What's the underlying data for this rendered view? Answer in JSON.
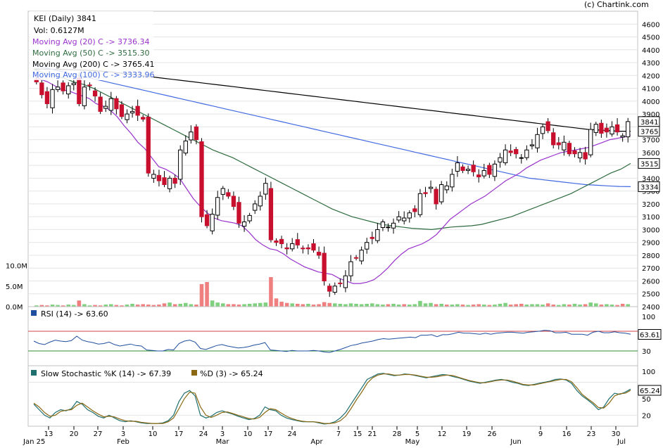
{
  "watermark": "(c) Chartink.com",
  "title": "KEI (Daily) 3841",
  "volume_label": "Vol: 0.6127M",
  "legend": [
    {
      "text": "Moving Avg (20) C -> 3736.34",
      "color": "#9932cc"
    },
    {
      "text": "Moving Avg (50) C -> 3515.30",
      "color": "#2e6b3f"
    },
    {
      "text": "Moving Avg (200) C -> 3765.41",
      "color": "#000000"
    },
    {
      "text": "Moving Avg (100) C -> 3333.96",
      "color": "#4169e1"
    }
  ],
  "rsi_label": "RSI (14) -> 63.60",
  "stoch_k_label": "Slow Stochastic %K (14) -> 67.39",
  "stoch_d_label": "%D (3) -> 65.24",
  "colors": {
    "up": "#ffffff",
    "down": "#c8102e",
    "vol_up": "#7fd17f",
    "vol_down": "#f08080",
    "rsi": "#1f4e9e",
    "stoch_k": "#1f6f6f",
    "stoch_d": "#8b6914"
  },
  "chart_data": [
    {
      "type": "candlestick",
      "title": "KEI (Daily) 3841",
      "ylim": [
        2400,
        4700
      ],
      "yticks": [
        2400,
        2500,
        2600,
        2700,
        2800,
        2900,
        3000,
        3100,
        3200,
        3300,
        3400,
        3500,
        3600,
        3700,
        3800,
        3900,
        4000,
        4100,
        4200,
        4300,
        4400,
        4500,
        4600
      ],
      "xticks": [
        "Jan 25",
        "13",
        "20",
        "27",
        "3",
        "Feb",
        "10",
        "17",
        "24",
        "3",
        "Mar",
        "10",
        "17",
        "24",
        "Apr",
        "7",
        "15",
        "21",
        "28",
        "5",
        "May",
        "12",
        "19",
        "26",
        "Jun",
        "9",
        "16",
        "23",
        "30",
        "Jul"
      ],
      "closes": [
        4150,
        4050,
        3980,
        4090,
        4110,
        4080,
        4120,
        4140,
        3980,
        4110,
        4120,
        4040,
        3920,
        3960,
        4020,
        3940,
        3880,
        3900,
        3920,
        3890,
        3860,
        3440,
        3430,
        3380,
        3350,
        3400,
        3360,
        3620,
        3690,
        3760,
        3700,
        3100,
        3030,
        3120,
        3250,
        3320,
        3260,
        3180,
        3050,
        3060,
        3110,
        3200,
        3260,
        3360,
        2920,
        2900,
        2890,
        2850,
        2890,
        2880,
        2850,
        2850,
        2840,
        2800,
        2600,
        2520,
        2560,
        2580,
        2640,
        2750,
        2780,
        2840,
        2900,
        2930,
        3000,
        3060,
        3020,
        3050,
        3100,
        3090,
        3130,
        3140,
        3280,
        3280,
        3330,
        3200,
        3350,
        3340,
        3430,
        3520,
        3460,
        3470,
        3450,
        3410,
        3460,
        3430,
        3510,
        3560,
        3620,
        3600,
        3590,
        3560,
        3620,
        3660,
        3740,
        3800,
        3770,
        3660,
        3660,
        3680,
        3590,
        3590,
        3600,
        3550,
        3780,
        3820,
        3750,
        3760,
        3800,
        3760,
        3730,
        3841
      ],
      "ma20": [
        4200,
        4170,
        4150,
        4120,
        4090,
        4080,
        4060,
        4040,
        4020,
        3980,
        3960,
        3930,
        3880,
        3810,
        3750,
        3680,
        3630,
        3560,
        3490,
        3470,
        3440,
        3400,
        3320,
        3240,
        3180,
        3130,
        3090,
        3070,
        3060,
        3050,
        3030,
        2980,
        2920,
        2880,
        2850,
        2840,
        2810,
        2770,
        2740,
        2710,
        2690,
        2670,
        2660,
        2650,
        2620,
        2600,
        2580,
        2580,
        2590,
        2610,
        2650,
        2700,
        2760,
        2810,
        2850,
        2870,
        2890,
        2920,
        2960,
        3020,
        3080,
        3120,
        3160,
        3200,
        3230,
        3260,
        3300,
        3340,
        3380,
        3410,
        3440,
        3480,
        3510,
        3540,
        3560,
        3580,
        3600,
        3610,
        3620,
        3630,
        3640,
        3660,
        3680,
        3700,
        3710,
        3720,
        3736
      ],
      "ma50": [
        4250,
        4220,
        4200,
        4180,
        4150,
        4130,
        4100,
        4060,
        4020,
        3980,
        3940,
        3900,
        3860,
        3820,
        3780,
        3740,
        3700,
        3660,
        3620,
        3590,
        3560,
        3520,
        3480,
        3440,
        3400,
        3360,
        3320,
        3280,
        3240,
        3200,
        3160,
        3130,
        3100,
        3080,
        3060,
        3040,
        3030,
        3020,
        3010,
        3005,
        3000,
        3010,
        3020,
        3025,
        3030,
        3040,
        3060,
        3080,
        3100,
        3130,
        3160,
        3190,
        3220,
        3250,
        3280,
        3320,
        3360,
        3400,
        3440,
        3470,
        3515
      ],
      "ma100": [
        4280,
        4260,
        4240,
        4220,
        4200,
        4180,
        4160,
        4140,
        4120,
        4100,
        4080,
        4060,
        4040,
        4020,
        4000,
        3980,
        3960,
        3940,
        3920,
        3900,
        3880,
        3860,
        3840,
        3820,
        3800,
        3780,
        3760,
        3740,
        3720,
        3700,
        3680,
        3660,
        3640,
        3620,
        3600,
        3580,
        3560,
        3540,
        3520,
        3500,
        3480,
        3460,
        3440,
        3420,
        3400,
        3390,
        3380,
        3370,
        3360,
        3350,
        3345,
        3340,
        3336,
        3334
      ],
      "ma200": [
        4250,
        4250,
        4248,
        4246,
        4244,
        4240,
        4235,
        4230,
        4220,
        4210,
        4200,
        4190,
        4180,
        4170,
        4160,
        4150,
        4140,
        4130,
        4120,
        4110,
        4100,
        4090,
        4080,
        4070,
        4060,
        4050,
        4040,
        4030,
        4020,
        4010,
        4000,
        3990,
        3980,
        3970,
        3960,
        3950,
        3940,
        3930,
        3920,
        3910,
        3900,
        3890,
        3880,
        3870,
        3860,
        3850,
        3840,
        3830,
        3820,
        3810,
        3800,
        3790,
        3780,
        3775,
        3770,
        3766,
        3765
      ],
      "last_price": 3841,
      "price_tags": [
        "3841",
        "3765",
        "3515",
        "3334"
      ]
    },
    {
      "type": "bar",
      "title": "Volume",
      "yticks": [
        "0.0M",
        "5.0M",
        "10.0M"
      ],
      "ylim": [
        0,
        12
      ],
      "values": [
        0.3,
        0.4,
        0.3,
        0.5,
        0.4,
        0.3,
        0.5,
        0.4,
        1.5,
        0.6,
        0.3,
        0.4,
        0.3,
        0.5,
        0.6,
        0.4,
        0.3,
        0.5,
        0.7,
        0.5,
        0.6,
        0.5,
        0.4,
        0.5,
        0.8,
        1.0,
        0.6,
        0.7,
        0.9,
        0.6,
        0.5,
        5.5,
        6.0,
        1.5,
        1.0,
        0.8,
        0.6,
        0.6,
        0.5,
        0.6,
        0.7,
        0.8,
        0.9,
        1.0,
        7.2,
        2.0,
        1.2,
        0.9,
        0.8,
        0.7,
        0.6,
        0.7,
        0.5,
        0.6,
        1.1,
        0.9,
        0.8,
        0.7,
        0.6,
        0.8,
        0.7,
        0.6,
        0.7,
        0.8,
        0.6,
        0.5,
        0.6,
        0.7,
        0.5,
        0.6,
        0.5,
        0.6,
        1.4,
        0.8,
        0.9,
        0.6,
        0.7,
        0.5,
        0.5,
        0.6,
        0.5,
        0.4,
        0.5,
        0.6,
        0.5,
        0.4,
        0.5,
        0.7,
        0.9,
        0.5,
        0.6,
        0.7,
        0.5,
        0.6,
        0.6,
        0.5,
        0.8,
        0.5,
        0.4,
        0.6,
        0.5,
        0.7,
        0.5,
        0.6,
        1.0,
        0.8,
        0.5,
        0.6,
        0.5,
        0.4,
        0.7,
        0.6
      ]
    },
    {
      "type": "line",
      "title": "RSI (14) -> 63.60",
      "ylim": [
        0,
        120
      ],
      "yticks": [
        30,
        63.61,
        100
      ],
      "bands": [
        30,
        70
      ],
      "values": [
        50,
        45,
        43,
        48,
        52,
        50,
        49,
        51,
        60,
        52,
        49,
        47,
        44,
        45,
        48,
        43,
        40,
        42,
        44,
        41,
        40,
        32,
        31,
        30,
        30,
        33,
        32,
        45,
        50,
        52,
        48,
        35,
        33,
        37,
        41,
        43,
        40,
        38,
        36,
        37,
        39,
        42,
        44,
        47,
        32,
        31,
        30,
        29,
        31,
        30,
        30,
        30,
        31,
        30,
        28,
        27,
        30,
        33,
        37,
        41,
        43,
        46,
        48,
        50,
        53,
        55,
        54,
        55,
        56,
        57,
        58,
        57,
        62,
        62,
        63,
        59,
        63,
        63,
        65,
        68,
        66,
        66,
        65,
        64,
        66,
        64,
        66,
        67,
        68,
        68,
        67,
        66,
        68,
        69,
        70,
        72,
        71,
        67,
        67,
        68,
        64,
        64,
        64,
        62,
        68,
        70,
        67,
        67,
        69,
        67,
        66,
        64
      ]
    },
    {
      "type": "line",
      "title": "Slow Stochastic %K (14) -> 67.39",
      "ylim": [
        0,
        110
      ],
      "yticks": [
        20,
        50,
        65.24,
        100
      ],
      "series": [
        {
          "name": "Slow Stochastic %K (14) -> 67.39",
          "values": [
            40,
            30,
            20,
            15,
            25,
            30,
            28,
            32,
            45,
            40,
            30,
            25,
            18,
            15,
            20,
            15,
            10,
            8,
            10,
            8,
            6,
            5,
            5,
            5,
            6,
            10,
            20,
            45,
            60,
            65,
            55,
            20,
            15,
            18,
            25,
            28,
            25,
            22,
            18,
            15,
            12,
            14,
            20,
            35,
            30,
            28,
            20,
            15,
            12,
            10,
            8,
            8,
            8,
            6,
            4,
            5,
            8,
            15,
            25,
            40,
            55,
            70,
            85,
            90,
            95,
            96,
            94,
            92,
            93,
            95,
            94,
            92,
            90,
            88,
            90,
            92,
            94,
            93,
            90,
            88,
            85,
            82,
            80,
            78,
            80,
            82,
            84,
            85,
            83,
            80,
            78,
            75,
            74,
            76,
            78,
            80,
            82,
            85,
            86,
            84,
            78,
            65,
            55,
            48,
            40,
            30,
            35,
            50,
            60,
            58,
            62,
            67.39
          ]
        },
        {
          "name": "%D (3) -> 65.24",
          "values": [
            42,
            35,
            25,
            18,
            20,
            27,
            29,
            30,
            38,
            42,
            35,
            28,
            22,
            17,
            18,
            17,
            13,
            10,
            9,
            9,
            7,
            6,
            5,
            5,
            5,
            8,
            15,
            32,
            50,
            62,
            60,
            35,
            20,
            16,
            20,
            25,
            26,
            23,
            20,
            17,
            14,
            13,
            16,
            25,
            32,
            30,
            24,
            18,
            14,
            11,
            9,
            8,
            8,
            7,
            5,
            5,
            6,
            10,
            18,
            32,
            48,
            62,
            78,
            88,
            93,
            95,
            95,
            93,
            93,
            94,
            94,
            93,
            91,
            89,
            89,
            90,
            92,
            93,
            92,
            89,
            86,
            83,
            81,
            79,
            79,
            81,
            83,
            84,
            84,
            82,
            79,
            76,
            75,
            75,
            77,
            79,
            81,
            83,
            85,
            85,
            81,
            70,
            58,
            50,
            43,
            34,
            33,
            42,
            55,
            59,
            60,
            65.24
          ]
        }
      ]
    }
  ]
}
